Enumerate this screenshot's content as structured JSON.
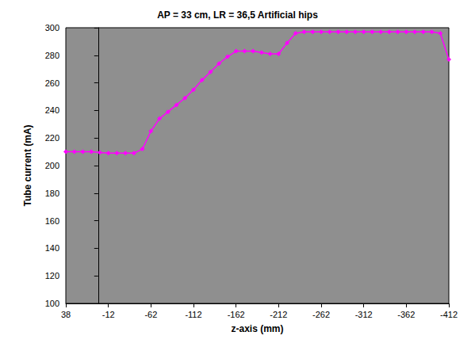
{
  "chart_data": {
    "type": "line",
    "title": "AP = 33 cm, LR = 36,5 Artificial hips",
    "x_label": "z-axis (mm)",
    "y_label": "Tube current (mA)",
    "x": [
      38,
      28,
      18,
      8,
      -2,
      -12,
      -22,
      -32,
      -42,
      -52,
      -62,
      -72,
      -82,
      -92,
      -102,
      -112,
      -122,
      -132,
      -142,
      -152,
      -162,
      -172,
      -182,
      -192,
      -202,
      -212,
      -222,
      -232,
      -242,
      -252,
      -262,
      -272,
      -282,
      -292,
      -302,
      -312,
      -322,
      -332,
      -342,
      -352,
      -362,
      -372,
      -382,
      -392,
      -402,
      -412
    ],
    "series": [
      {
        "color": "#ff00ff",
        "marker": "diamond",
        "values": [
          210,
          210,
          210,
          210,
          209.5,
          209,
          209,
          209,
          209,
          212,
          225,
          234,
          239,
          244,
          249,
          255,
          262,
          268,
          274,
          279,
          283,
          283,
          283,
          282,
          281,
          281,
          289,
          296,
          297,
          297,
          297,
          297,
          297,
          297,
          297,
          297,
          297,
          297,
          297,
          297,
          297,
          297,
          297,
          297,
          296,
          277
        ]
      }
    ],
    "xlim": [
      38,
      -412
    ],
    "xticks": [
      38,
      -12,
      -62,
      -112,
      -162,
      -212,
      -262,
      -312,
      -362,
      -412
    ],
    "ylim": [
      100,
      300
    ],
    "yticks": [
      100,
      120,
      140,
      160,
      180,
      200,
      220,
      240,
      260,
      280,
      300
    ],
    "grid": false
  }
}
